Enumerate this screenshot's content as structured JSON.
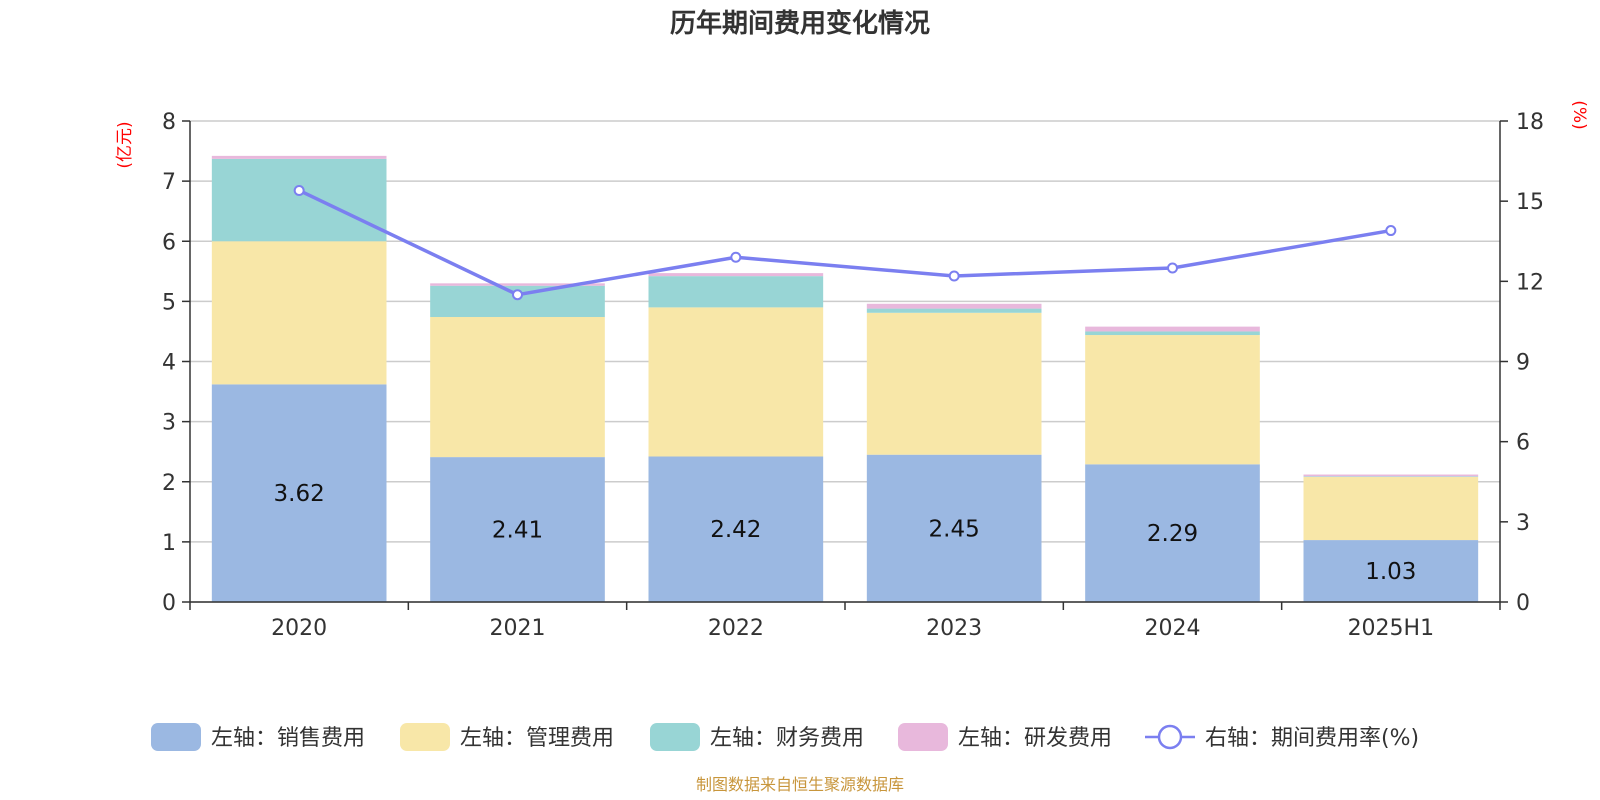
{
  "chart_data": {
    "type": "bar",
    "title": "历年期间费用变化情况",
    "categories": [
      "2020",
      "2021",
      "2022",
      "2023",
      "2024",
      "2025H1"
    ],
    "left_axis": {
      "unit": "(亿元)",
      "ylim": [
        0,
        8
      ],
      "ticks": [
        "0",
        "1",
        "2",
        "3",
        "4",
        "5",
        "6",
        "7",
        "8"
      ]
    },
    "right_axis": {
      "unit": "(%)",
      "ylim": [
        0,
        18
      ],
      "ticks": [
        "0",
        "3",
        "6",
        "9",
        "12",
        "15",
        "18"
      ]
    },
    "series": [
      {
        "name": "左轴：销售费用",
        "type": "bar",
        "axis": "left",
        "color": "#9bb8e2",
        "values": [
          3.62,
          2.41,
          2.42,
          2.45,
          2.29,
          1.03
        ],
        "labels": [
          "3.62",
          "2.41",
          "2.42",
          "2.45",
          "2.29",
          "1.03"
        ]
      },
      {
        "name": "左轴：管理费用",
        "type": "bar",
        "axis": "left",
        "color": "#f8e7a8",
        "values": [
          2.38,
          2.33,
          2.48,
          2.36,
          2.15,
          1.05
        ]
      },
      {
        "name": "左轴：财务费用",
        "type": "bar",
        "axis": "left",
        "color": "#98d5d5",
        "values": [
          1.37,
          0.52,
          0.52,
          0.07,
          0.06,
          0.01
        ]
      },
      {
        "name": "左轴：研发费用",
        "type": "bar",
        "axis": "left",
        "color": "#e8b8dc",
        "values": [
          0.05,
          0.04,
          0.05,
          0.08,
          0.08,
          0.03
        ]
      },
      {
        "name": "右轴：期间费用率(%)",
        "type": "line",
        "axis": "right",
        "color": "#7b7ff0",
        "values": [
          15.4,
          11.5,
          12.9,
          12.2,
          12.5,
          13.9
        ]
      }
    ],
    "grid": true,
    "legend": "bottom"
  },
  "footer": {
    "source": "制图数据来自恒生聚源数据库"
  }
}
